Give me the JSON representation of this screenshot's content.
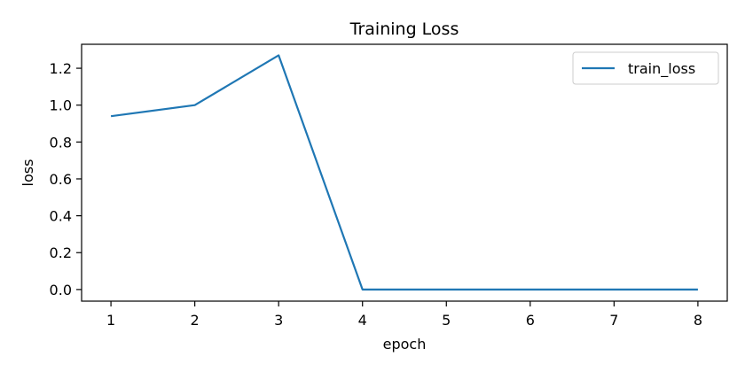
{
  "chart_data": {
    "type": "line",
    "title": "Training Loss",
    "xlabel": "epoch",
    "ylabel": "loss",
    "x": [
      1,
      2,
      3,
      4,
      5,
      6,
      7,
      8
    ],
    "xticks": [
      1,
      2,
      3,
      4,
      5,
      6,
      7,
      8
    ],
    "yticks": [
      0.0,
      0.2,
      0.4,
      0.6,
      0.8,
      1.0,
      1.2
    ],
    "xlim": [
      0.65,
      8.35
    ],
    "ylim": [
      -0.063,
      1.33
    ],
    "grid": false,
    "legend": "top-right",
    "series": [
      {
        "name": "train_loss",
        "color": "#1f77b4",
        "values": [
          0.94,
          1.0,
          1.27,
          0.0,
          0.0,
          0.0,
          0.0,
          0.0
        ]
      }
    ]
  }
}
